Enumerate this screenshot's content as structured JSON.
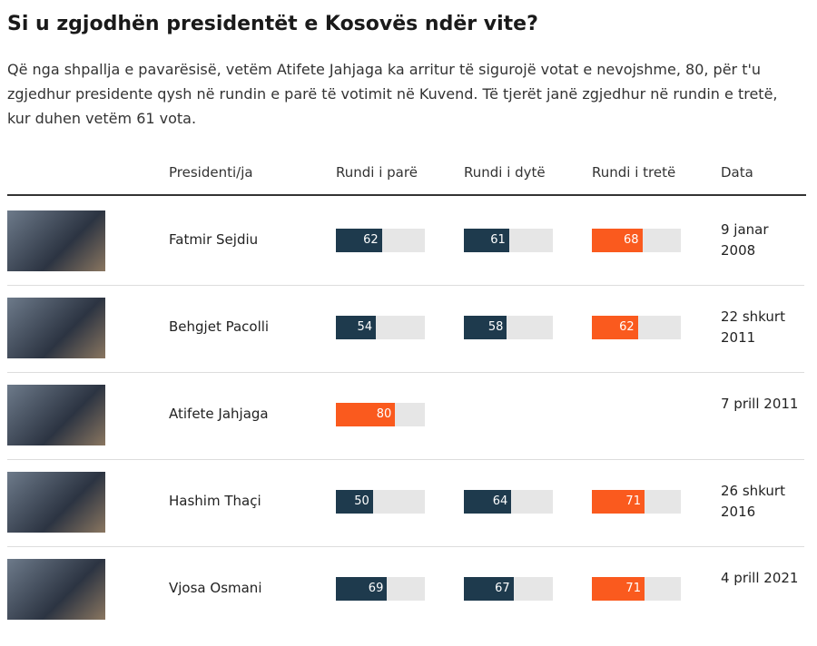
{
  "header": {
    "title": "Si u zgjodhën presidentët e Kosovës ndër vite?",
    "subtitle": "Që nga shpallja e pavarësisë, vetëm Atifete Jahjaga ka arritur të sigurojë votat e nevojshme, 80, për t'u zgjedhur presidente qysh në rundin e parë të votimit në Kuvend. Të tjerët janë zgjedhur në rundin e tretë, kur duhen vetëm 61 vota."
  },
  "table": {
    "columns": [
      "Presidenti/ja",
      "Rundi i parë",
      "Rundi i dytë",
      "Rundi i tretë",
      "Data"
    ],
    "value_range": [
      0,
      120
    ],
    "colors": {
      "round": "#1e3a4d",
      "elected": "#fa5a1e",
      "track": "#e6e6e6"
    },
    "rows": [
      {
        "name": "Fatmir Sejdiu",
        "rounds": [
          62,
          61,
          68
        ],
        "elected": 2,
        "date": "9 janar 2008"
      },
      {
        "name": "Behgjet Pacolli",
        "rounds": [
          54,
          58,
          62
        ],
        "elected": 2,
        "date": "22 shkurt 2011"
      },
      {
        "name": "Atifete Jahjaga",
        "rounds": [
          80,
          null,
          null
        ],
        "elected": 0,
        "date": "7 prill 2011"
      },
      {
        "name": "Hashim Thaçi",
        "rounds": [
          50,
          64,
          71
        ],
        "elected": 2,
        "date": "26 shkurt 2016"
      },
      {
        "name": "Vjosa Osmani",
        "rounds": [
          69,
          67,
          71
        ],
        "elected": 2,
        "date": "4 prill 2021"
      }
    ]
  }
}
